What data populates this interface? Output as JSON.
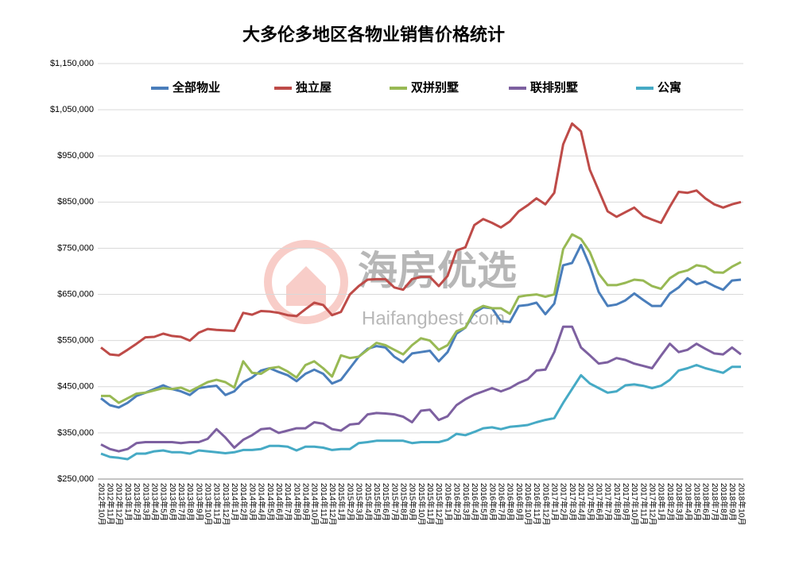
{
  "chart_data": {
    "type": "line",
    "title": "大多伦多地区各物业销售价格统计",
    "watermark": {
      "brand": "海房优选",
      "site": "Haifangbest.com"
    },
    "categories": [
      "2012年10月",
      "2012年11月",
      "2012年12月",
      "2013年1月",
      "2013年2月",
      "2013年3月",
      "2013年4月",
      "2013年5月",
      "2013年6月",
      "2013年7月",
      "2013年8月",
      "2013年9月",
      "2013年10月",
      "2013年11月",
      "2013年12月",
      "2014年1月",
      "2014年2月",
      "2014年3月",
      "2014年4月",
      "2014年5月",
      "2014年6月",
      "2014年7月",
      "2014年8月",
      "2014年9月",
      "2014年10月",
      "2014年11月",
      "2014年12月",
      "2015年1月",
      "2015年2月",
      "2015年3月",
      "2015年4月",
      "2015年5月",
      "2015年6月",
      "2015年7月",
      "2015年8月",
      "2015年9月",
      "2015年10月",
      "2015年11月",
      "2015年12月",
      "2016年1月",
      "2016年2月",
      "2016年3月",
      "2016年4月",
      "2016年5月",
      "2016年6月",
      "2016年7月",
      "2016年8月",
      "2016年9月",
      "2016年10月",
      "2016年11月",
      "2016年12月",
      "2017年1月",
      "2017年2月",
      "2017年3月",
      "2017年4月",
      "2017年5月",
      "2017年6月",
      "2017年7月",
      "2017年8月",
      "2017年9月",
      "2017年10月",
      "2017年11月",
      "2017年12月",
      "2018年1月",
      "2018年2月",
      "2018年3月",
      "2018年4月",
      "2018年5月",
      "2018年6月",
      "2018年7月",
      "2018年8月",
      "2018年9月",
      "2018年10月"
    ],
    "series": [
      {
        "name": "全部物业",
        "color": "#4a7ebb",
        "values": [
          425000,
          410000,
          405000,
          415000,
          430000,
          437000,
          445000,
          453000,
          445000,
          440000,
          432000,
          447000,
          450000,
          452000,
          432000,
          440000,
          460000,
          470000,
          485000,
          490000,
          482000,
          475000,
          462000,
          478000,
          487000,
          478000,
          457000,
          465000,
          490000,
          515000,
          532000,
          538000,
          535000,
          515000,
          503000,
          522000,
          525000,
          528000,
          505000,
          525000,
          565000,
          578000,
          610000,
          622000,
          620000,
          592000,
          590000,
          625000,
          627000,
          632000,
          607000,
          630000,
          713000,
          718000,
          757000,
          712000,
          655000,
          625000,
          628000,
          637000,
          652000,
          638000,
          625000,
          625000,
          652000,
          665000,
          685000,
          672000,
          678000,
          668000,
          660000,
          680000,
          682000
        ]
      },
      {
        "name": "独立屋",
        "color": "#be4b48",
        "values": [
          535000,
          520000,
          518000,
          530000,
          543000,
          557000,
          558000,
          565000,
          560000,
          558000,
          550000,
          567000,
          575000,
          573000,
          572000,
          571000,
          610000,
          606000,
          614000,
          613000,
          610000,
          605000,
          603000,
          618000,
          632000,
          627000,
          605000,
          612000,
          650000,
          668000,
          682000,
          683000,
          683000,
          665000,
          660000,
          683000,
          688000,
          688000,
          668000,
          690000,
          745000,
          752000,
          800000,
          813000,
          805000,
          795000,
          808000,
          830000,
          843000,
          858000,
          845000,
          870000,
          975000,
          1020000,
          1003000,
          920000,
          875000,
          830000,
          818000,
          828000,
          838000,
          820000,
          812000,
          805000,
          840000,
          872000,
          870000,
          875000,
          858000,
          845000,
          838000,
          845000,
          850000
        ]
      },
      {
        "name": "双拼别墅",
        "color": "#98b954",
        "values": [
          430000,
          430000,
          415000,
          425000,
          435000,
          437000,
          442000,
          447000,
          445000,
          448000,
          440000,
          450000,
          460000,
          465000,
          460000,
          448000,
          505000,
          480000,
          478000,
          490000,
          493000,
          483000,
          470000,
          497000,
          505000,
          490000,
          472000,
          518000,
          512000,
          515000,
          530000,
          545000,
          540000,
          530000,
          520000,
          540000,
          555000,
          550000,
          530000,
          540000,
          570000,
          578000,
          615000,
          625000,
          620000,
          620000,
          608000,
          645000,
          648000,
          650000,
          645000,
          650000,
          748000,
          780000,
          770000,
          742000,
          695000,
          670000,
          670000,
          675000,
          682000,
          680000,
          668000,
          662000,
          685000,
          697000,
          702000,
          713000,
          710000,
          698000,
          697000,
          710000,
          720000
        ]
      },
      {
        "name": "联排别墅",
        "color": "#7d60a0",
        "values": [
          325000,
          315000,
          310000,
          315000,
          328000,
          330000,
          330000,
          330000,
          330000,
          328000,
          330000,
          330000,
          337000,
          358000,
          340000,
          318000,
          335000,
          345000,
          358000,
          360000,
          350000,
          355000,
          360000,
          360000,
          373000,
          370000,
          358000,
          355000,
          368000,
          370000,
          390000,
          393000,
          392000,
          390000,
          385000,
          373000,
          398000,
          400000,
          378000,
          386000,
          410000,
          423000,
          433000,
          440000,
          447000,
          440000,
          447000,
          458000,
          466000,
          485000,
          487000,
          525000,
          580000,
          580000,
          535000,
          518000,
          500000,
          503000,
          512000,
          508000,
          500000,
          495000,
          490000,
          517000,
          543000,
          525000,
          530000,
          543000,
          532000,
          522000,
          520000,
          535000,
          520000
        ]
      },
      {
        "name": "公寓",
        "color": "#46aac5",
        "values": [
          305000,
          298000,
          296000,
          293000,
          305000,
          305000,
          310000,
          312000,
          308000,
          308000,
          305000,
          312000,
          310000,
          308000,
          306000,
          308000,
          313000,
          313000,
          315000,
          322000,
          322000,
          320000,
          312000,
          320000,
          320000,
          318000,
          313000,
          315000,
          315000,
          328000,
          330000,
          333000,
          333000,
          333000,
          333000,
          328000,
          330000,
          330000,
          330000,
          335000,
          348000,
          345000,
          352000,
          360000,
          362000,
          358000,
          363000,
          365000,
          367000,
          373000,
          378000,
          382000,
          415000,
          445000,
          475000,
          457000,
          447000,
          437000,
          440000,
          453000,
          455000,
          452000,
          447000,
          452000,
          465000,
          485000,
          490000,
          497000,
          490000,
          485000,
          480000,
          493000,
          493000
        ]
      }
    ],
    "ylim": [
      250000,
      1150000
    ],
    "yticks": [
      {
        "value": 250000,
        "label": "$250,000"
      },
      {
        "value": 350000,
        "label": "$350,000"
      },
      {
        "value": 450000,
        "label": "$450,000"
      },
      {
        "value": 550000,
        "label": "$550,000"
      },
      {
        "value": 650000,
        "label": "$650,000"
      },
      {
        "value": 750000,
        "label": "$750,000"
      },
      {
        "value": 850000,
        "label": "$850,000"
      },
      {
        "value": 950000,
        "label": "$950,000"
      },
      {
        "value": 1050000,
        "label": "$1,050,000"
      },
      {
        "value": 1150000,
        "label": "$1,150,000"
      }
    ],
    "grid": true,
    "legend": "top"
  }
}
